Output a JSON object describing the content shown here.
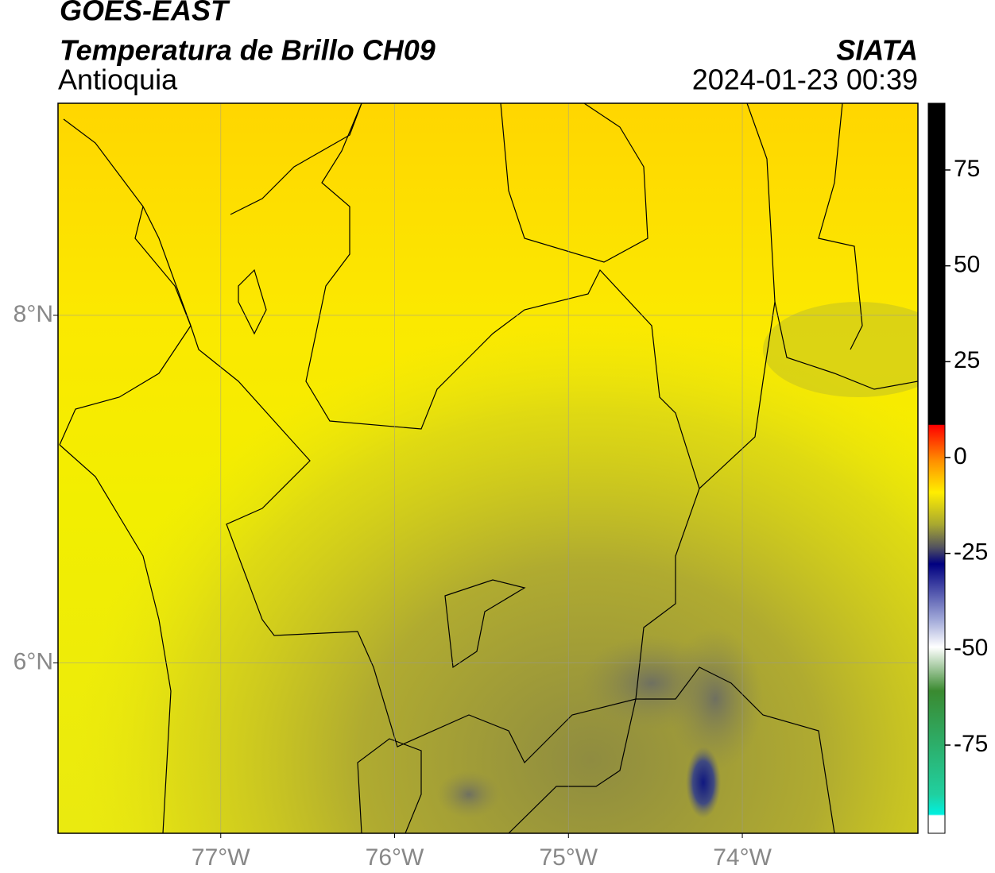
{
  "header": {
    "title": "GOES-EAST",
    "subtitle": "Temperatura de Brillo CH09",
    "region": "Antioquia",
    "source": "SIATA",
    "datetime": "2024-01-23 00:39"
  },
  "map": {
    "xlim": [
      -77.936,
      -72.99
    ],
    "ylim": [
      5.02,
      9.22
    ],
    "xticks": [
      {
        "value": -77,
        "label": "77°W"
      },
      {
        "value": -76,
        "label": "76°W"
      },
      {
        "value": -75,
        "label": "75°W"
      },
      {
        "value": -74,
        "label": "74°W"
      }
    ],
    "yticks": [
      {
        "value": 8,
        "label": "8°N"
      },
      {
        "value": 6,
        "label": "6°N"
      }
    ],
    "grid": true
  },
  "colorbar": {
    "lim": [
      -98,
      92.4
    ],
    "ticks": [
      75,
      50,
      25,
      0,
      -25,
      -50,
      -75
    ]
  }
}
